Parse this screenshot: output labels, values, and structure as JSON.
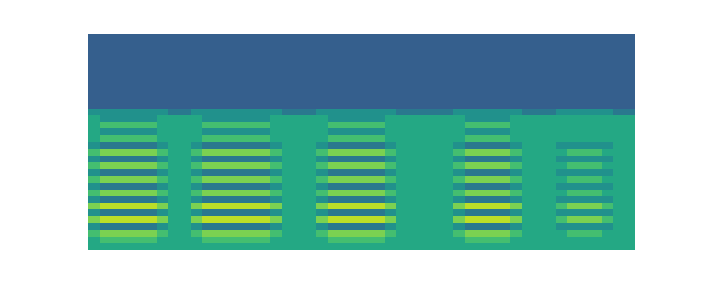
{
  "chart_data": {
    "type": "heatmap",
    "tick_labels": false,
    "color": "viridis",
    "zlim": [
      0,
      10
    ],
    "cells": [
      [
        3,
        3,
        3,
        3,
        3,
        3,
        3,
        3,
        3,
        3,
        3,
        3,
        3,
        3,
        3,
        3,
        3,
        3,
        3,
        3,
        3,
        3,
        3,
        3,
        3,
        3,
        3,
        3,
        3,
        3,
        3,
        3,
        3,
        3,
        3,
        3,
        3,
        3,
        3,
        3,
        3,
        3,
        3,
        3,
        3,
        3,
        3,
        3
      ],
      [
        3,
        3,
        3,
        3,
        3,
        3,
        3,
        3,
        3,
        3,
        3,
        3,
        3,
        3,
        3,
        3,
        3,
        3,
        3,
        3,
        3,
        3,
        3,
        3,
        3,
        3,
        3,
        3,
        3,
        3,
        3,
        3,
        3,
        3,
        3,
        3,
        3,
        3,
        3,
        3,
        3,
        3,
        3,
        3,
        3,
        3,
        3,
        3
      ],
      [
        3,
        3,
        3,
        3,
        3,
        3,
        3,
        3,
        3,
        3,
        3,
        3,
        3,
        3,
        3,
        3,
        3,
        3,
        3,
        3,
        3,
        3,
        3,
        3,
        3,
        3,
        3,
        3,
        3,
        3,
        3,
        3,
        3,
        3,
        3,
        3,
        3,
        3,
        3,
        3,
        3,
        3,
        3,
        3,
        3,
        3,
        3,
        3
      ],
      [
        3,
        3,
        3,
        3,
        3,
        3,
        3,
        3,
        3,
        3,
        3,
        3,
        3,
        3,
        3,
        3,
        3,
        3,
        3,
        3,
        3,
        3,
        3,
        3,
        3,
        3,
        3,
        3,
        3,
        3,
        3,
        3,
        3,
        3,
        3,
        3,
        3,
        3,
        3,
        3,
        3,
        3,
        3,
        3,
        3,
        3,
        3,
        3
      ],
      [
        3,
        3,
        3,
        3,
        3,
        3,
        3,
        3,
        3,
        3,
        3,
        3,
        3,
        3,
        3,
        3,
        3,
        3,
        3,
        3,
        3,
        3,
        3,
        3,
        3,
        3,
        3,
        3,
        3,
        3,
        3,
        3,
        3,
        3,
        3,
        3,
        3,
        3,
        3,
        3,
        3,
        3,
        3,
        3,
        3,
        3,
        3,
        3
      ],
      [
        3,
        3,
        3,
        3,
        3,
        3,
        3,
        3,
        3,
        3,
        3,
        3,
        3,
        3,
        3,
        3,
        3,
        3,
        3,
        3,
        3,
        3,
        3,
        3,
        3,
        3,
        3,
        3,
        3,
        3,
        3,
        3,
        3,
        3,
        3,
        3,
        3,
        3,
        3,
        3,
        3,
        3,
        3,
        3,
        3,
        3,
        3,
        3
      ],
      [
        3,
        3,
        3,
        3,
        3,
        3,
        3,
        3,
        3,
        3,
        3,
        3,
        3,
        3,
        3,
        3,
        3,
        3,
        3,
        3,
        3,
        3,
        3,
        3,
        3,
        3,
        3,
        3,
        3,
        3,
        3,
        3,
        3,
        3,
        3,
        3,
        3,
        3,
        3,
        3,
        3,
        3,
        3,
        3,
        3,
        3,
        3,
        3
      ],
      [
        3,
        3,
        3,
        3,
        3,
        3,
        3,
        3,
        3,
        3,
        3,
        3,
        3,
        3,
        3,
        3,
        3,
        3,
        3,
        3,
        3,
        3,
        3,
        3,
        3,
        3,
        3,
        3,
        3,
        3,
        3,
        3,
        3,
        3,
        3,
        3,
        3,
        3,
        3,
        3,
        3,
        3,
        3,
        3,
        3,
        3,
        3,
        3
      ],
      [
        3,
        3,
        3,
        3,
        3,
        3,
        3,
        3,
        3,
        3,
        3,
        3,
        3,
        3,
        3,
        3,
        3,
        3,
        3,
        3,
        3,
        3,
        3,
        3,
        3,
        3,
        3,
        3,
        3,
        3,
        3,
        3,
        3,
        3,
        3,
        3,
        3,
        3,
        3,
        3,
        3,
        3,
        3,
        3,
        3,
        3,
        3,
        3
      ],
      [
        3,
        3,
        3,
        3,
        3,
        3,
        3,
        3,
        3,
        3,
        3,
        3,
        3,
        3,
        3,
        3,
        3,
        3,
        3,
        3,
        3,
        3,
        3,
        3,
        3,
        3,
        3,
        3,
        3,
        3,
        3,
        3,
        3,
        3,
        3,
        3,
        3,
        3,
        3,
        3,
        3,
        3,
        3,
        3,
        3,
        3,
        3,
        3
      ],
      [
        3,
        3,
        3,
        3,
        3,
        3,
        3,
        3,
        3,
        3,
        3,
        3,
        3,
        3,
        3,
        3,
        3,
        3,
        3,
        3,
        3,
        3,
        3,
        3,
        3,
        3,
        3,
        3,
        3,
        3,
        3,
        3,
        3,
        3,
        3,
        3,
        3,
        3,
        3,
        3,
        3,
        3,
        3,
        3,
        3,
        3,
        3,
        3
      ],
      [
        5,
        5,
        5,
        5,
        5,
        5,
        5,
        4,
        4,
        5,
        5,
        5,
        5,
        5,
        5,
        5,
        5,
        4,
        4,
        4,
        5,
        5,
        5,
        5,
        5,
        5,
        5,
        4,
        4,
        4,
        4,
        4,
        5,
        5,
        5,
        5,
        5,
        5,
        4,
        4,
        4,
        5,
        5,
        5,
        5,
        5,
        4,
        4
      ],
      [
        6,
        5,
        5,
        5,
        5,
        5,
        6,
        6,
        6,
        6,
        5,
        5,
        5,
        5,
        5,
        5,
        6,
        6,
        6,
        6,
        6,
        5,
        5,
        5,
        5,
        5,
        6,
        6,
        6,
        6,
        6,
        6,
        6,
        5,
        5,
        5,
        5,
        6,
        6,
        6,
        6,
        6,
        6,
        6,
        6,
        6,
        6,
        6
      ],
      [
        6,
        7,
        7,
        7,
        7,
        7,
        6,
        6,
        6,
        6,
        7,
        7,
        7,
        7,
        7,
        7,
        6,
        6,
        6,
        6,
        6,
        7,
        7,
        7,
        7,
        7,
        6,
        6,
        6,
        6,
        6,
        6,
        6,
        7,
        7,
        7,
        7,
        6,
        6,
        6,
        6,
        6,
        6,
        6,
        6,
        6,
        6,
        6
      ],
      [
        6,
        5,
        5,
        5,
        5,
        5,
        6,
        6,
        6,
        6,
        5,
        5,
        5,
        5,
        5,
        5,
        6,
        6,
        6,
        6,
        6,
        5,
        5,
        5,
        5,
        5,
        6,
        6,
        6,
        6,
        6,
        6,
        6,
        5,
        5,
        5,
        5,
        6,
        6,
        6,
        6,
        6,
        6,
        6,
        6,
        6,
        6,
        6
      ],
      [
        6,
        7,
        7,
        7,
        7,
        7,
        6,
        6,
        6,
        6,
        7,
        7,
        7,
        7,
        7,
        7,
        6,
        6,
        6,
        6,
        6,
        7,
        7,
        7,
        7,
        7,
        6,
        6,
        6,
        6,
        6,
        6,
        6,
        7,
        7,
        7,
        7,
        6,
        6,
        6,
        6,
        6,
        6,
        6,
        6,
        6,
        6,
        6
      ],
      [
        5,
        4,
        4,
        4,
        4,
        4,
        5,
        6,
        6,
        5,
        4,
        4,
        4,
        4,
        4,
        4,
        5,
        6,
        6,
        6,
        5,
        4,
        4,
        4,
        4,
        4,
        5,
        6,
        6,
        6,
        6,
        6,
        5,
        4,
        4,
        4,
        4,
        5,
        6,
        6,
        6,
        5,
        5,
        5,
        5,
        5,
        6,
        6
      ],
      [
        7,
        8,
        8,
        8,
        8,
        8,
        7,
        6,
        6,
        7,
        8,
        8,
        8,
        8,
        8,
        8,
        7,
        6,
        6,
        6,
        7,
        8,
        8,
        8,
        8,
        8,
        7,
        6,
        6,
        6,
        6,
        6,
        7,
        8,
        8,
        8,
        8,
        7,
        6,
        6,
        6,
        6,
        7,
        7,
        7,
        6,
        6,
        6
      ],
      [
        5,
        4,
        4,
        4,
        4,
        4,
        5,
        6,
        6,
        5,
        4,
        4,
        4,
        4,
        4,
        4,
        5,
        6,
        6,
        6,
        5,
        4,
        4,
        4,
        4,
        4,
        5,
        6,
        6,
        6,
        6,
        6,
        5,
        4,
        4,
        4,
        4,
        5,
        6,
        6,
        6,
        5,
        5,
        5,
        5,
        5,
        6,
        6
      ],
      [
        7,
        8,
        8,
        8,
        8,
        8,
        7,
        6,
        6,
        7,
        8,
        8,
        8,
        8,
        8,
        8,
        7,
        6,
        6,
        6,
        7,
        8,
        8,
        8,
        8,
        8,
        7,
        6,
        6,
        6,
        6,
        6,
        7,
        8,
        8,
        8,
        8,
        7,
        6,
        6,
        6,
        6,
        7,
        7,
        7,
        6,
        6,
        6
      ],
      [
        5,
        4,
        4,
        4,
        4,
        4,
        5,
        6,
        6,
        5,
        4,
        4,
        4,
        4,
        4,
        4,
        5,
        6,
        6,
        6,
        5,
        4,
        4,
        4,
        4,
        4,
        5,
        6,
        6,
        6,
        6,
        6,
        5,
        4,
        4,
        4,
        4,
        5,
        6,
        6,
        6,
        5,
        5,
        5,
        5,
        5,
        6,
        6
      ],
      [
        7,
        8,
        8,
        8,
        8,
        8,
        7,
        6,
        6,
        7,
        8,
        8,
        8,
        8,
        8,
        8,
        7,
        6,
        6,
        6,
        7,
        8,
        8,
        8,
        8,
        8,
        7,
        6,
        6,
        6,
        6,
        6,
        7,
        8,
        8,
        8,
        8,
        7,
        6,
        6,
        6,
        6,
        7,
        7,
        7,
        6,
        6,
        6
      ],
      [
        5,
        4,
        4,
        4,
        4,
        4,
        5,
        6,
        6,
        5,
        4,
        4,
        4,
        4,
        4,
        4,
        5,
        6,
        6,
        6,
        5,
        4,
        4,
        4,
        4,
        4,
        5,
        6,
        6,
        6,
        6,
        6,
        5,
        4,
        4,
        4,
        4,
        5,
        6,
        6,
        6,
        5,
        5,
        5,
        5,
        5,
        6,
        6
      ],
      [
        7,
        8,
        8,
        8,
        8,
        8,
        7,
        6,
        6,
        7,
        8,
        8,
        8,
        8,
        8,
        8,
        7,
        6,
        6,
        6,
        7,
        8,
        8,
        8,
        8,
        8,
        7,
        6,
        6,
        6,
        6,
        6,
        7,
        8,
        8,
        8,
        8,
        7,
        6,
        6,
        6,
        6,
        7,
        7,
        7,
        6,
        6,
        6
      ],
      [
        5,
        4,
        4,
        4,
        4,
        4,
        5,
        6,
        6,
        5,
        4,
        4,
        4,
        4,
        4,
        4,
        5,
        6,
        6,
        6,
        5,
        4,
        4,
        4,
        4,
        4,
        5,
        6,
        6,
        6,
        6,
        6,
        5,
        4,
        4,
        4,
        4,
        5,
        6,
        6,
        6,
        5,
        5,
        5,
        5,
        5,
        6,
        6
      ],
      [
        8,
        9,
        9,
        9,
        9,
        9,
        8,
        6,
        6,
        8,
        9,
        9,
        9,
        9,
        9,
        9,
        8,
        6,
        6,
        6,
        8,
        9,
        9,
        9,
        9,
        9,
        8,
        6,
        6,
        6,
        6,
        6,
        8,
        9,
        9,
        9,
        9,
        8,
        6,
        6,
        6,
        7,
        8,
        8,
        8,
        7,
        6,
        6
      ],
      [
        5,
        4,
        4,
        4,
        4,
        4,
        5,
        6,
        6,
        5,
        4,
        4,
        4,
        4,
        4,
        4,
        5,
        6,
        6,
        6,
        5,
        4,
        4,
        4,
        4,
        4,
        5,
        6,
        6,
        6,
        6,
        6,
        5,
        4,
        4,
        4,
        4,
        5,
        6,
        6,
        6,
        5,
        5,
        5,
        5,
        5,
        6,
        6
      ],
      [
        8,
        9,
        9,
        9,
        9,
        9,
        8,
        6,
        6,
        8,
        9,
        9,
        9,
        9,
        9,
        9,
        8,
        6,
        6,
        6,
        8,
        9,
        9,
        9,
        9,
        9,
        8,
        6,
        6,
        6,
        6,
        6,
        8,
        9,
        9,
        9,
        9,
        8,
        6,
        6,
        6,
        7,
        8,
        8,
        8,
        7,
        6,
        6
      ],
      [
        5,
        4,
        4,
        4,
        4,
        4,
        5,
        6,
        6,
        5,
        4,
        4,
        4,
        4,
        4,
        4,
        5,
        6,
        6,
        6,
        5,
        4,
        4,
        4,
        4,
        4,
        5,
        6,
        6,
        6,
        6,
        6,
        5,
        4,
        4,
        4,
        4,
        5,
        6,
        6,
        6,
        5,
        5,
        5,
        5,
        5,
        6,
        6
      ],
      [
        7,
        8,
        8,
        8,
        8,
        8,
        7,
        6,
        6,
        7,
        8,
        8,
        8,
        8,
        8,
        8,
        7,
        6,
        6,
        6,
        7,
        8,
        8,
        8,
        8,
        8,
        7,
        6,
        6,
        6,
        6,
        6,
        7,
        8,
        8,
        8,
        8,
        7,
        6,
        6,
        6,
        6,
        7,
        7,
        7,
        6,
        6,
        6
      ],
      [
        6,
        7,
        7,
        7,
        7,
        7,
        6,
        6,
        6,
        6,
        7,
        7,
        7,
        7,
        7,
        7,
        6,
        6,
        6,
        6,
        6,
        7,
        7,
        7,
        7,
        7,
        6,
        6,
        6,
        6,
        6,
        6,
        6,
        7,
        7,
        7,
        7,
        6,
        6,
        6,
        6,
        6,
        6,
        6,
        6,
        6,
        6,
        6
      ],
      [
        6,
        6,
        6,
        6,
        6,
        6,
        6,
        6,
        6,
        6,
        6,
        6,
        6,
        6,
        6,
        6,
        6,
        6,
        6,
        6,
        6,
        6,
        6,
        6,
        6,
        6,
        6,
        6,
        6,
        6,
        6,
        6,
        6,
        6,
        6,
        6,
        6,
        6,
        6,
        6,
        6,
        6,
        6,
        6,
        6,
        6,
        6,
        6
      ]
    ]
  }
}
